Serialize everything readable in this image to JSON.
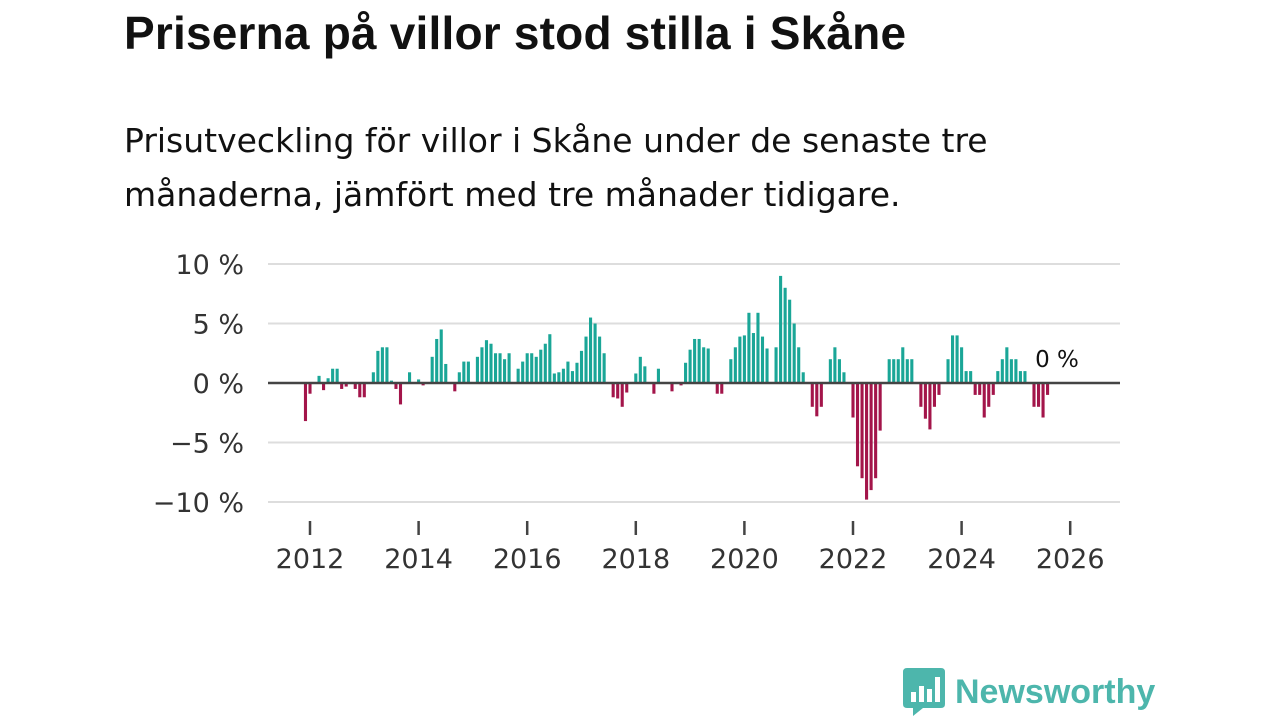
{
  "header": {
    "title": "Priserna på villor stod stilla i Skåne",
    "subtitle": "Prisutveckling för villor i Skåne under de senaste tre månaderna, jämfört med tre månader tidigare."
  },
  "brand": {
    "name": "Newsworthy",
    "logo_icon": "bar-chart-speech-icon",
    "color": "#4db6ac"
  },
  "colors": {
    "positive": "#1aa697",
    "negative": "#a3154a",
    "grid": "#dddddd",
    "zero_line": "#444444",
    "axis_text": "#333333"
  },
  "chart_data": {
    "type": "bar",
    "title": "Priserna på villor stod stilla i Skåne",
    "subtitle": "Prisutveckling för villor i Skåne under de senaste tre månaderna, jämfört med tre månader tidigare.",
    "xlabel": "",
    "ylabel": "",
    "x_unit": "month",
    "start": "2011-12",
    "end": "2025-12",
    "x_range": [
      2011.0,
      2027.0
    ],
    "ylim": [
      -11,
      11
    ],
    "y_ticks": [
      10,
      5,
      0,
      -5,
      -10
    ],
    "y_tick_labels": [
      "10 %",
      "5 %",
      "0 %",
      "−5 %",
      "−10 %"
    ],
    "x_ticks": [
      2012,
      2014,
      2016,
      2018,
      2020,
      2022,
      2024,
      2026
    ],
    "x_tick_labels": [
      "2012",
      "2014",
      "2016",
      "2018",
      "2020",
      "2022",
      "2024",
      "2026"
    ],
    "grid": true,
    "annotation": {
      "label": "0 %",
      "value": 0
    },
    "values": [
      -3.2,
      -0.9,
      0.0,
      0.6,
      -0.6,
      0.4,
      1.2,
      1.2,
      -0.5,
      -0.3,
      0.0,
      -0.5,
      -1.2,
      -1.2,
      0.0,
      0.9,
      2.7,
      3.0,
      3.0,
      0.2,
      -0.5,
      -1.8,
      0.0,
      0.9,
      0.0,
      0.3,
      -0.2,
      0.0,
      2.2,
      3.7,
      4.5,
      1.6,
      0.0,
      -0.7,
      0.9,
      1.8,
      1.8,
      0.0,
      2.2,
      3.0,
      3.6,
      3.3,
      2.5,
      2.5,
      2.0,
      2.5,
      0.0,
      1.2,
      1.8,
      2.5,
      2.5,
      2.2,
      2.8,
      3.3,
      4.1,
      0.8,
      0.9,
      1.2,
      1.8,
      1.0,
      1.7,
      2.7,
      3.9,
      5.5,
      5.0,
      3.9,
      2.5,
      0.0,
      -1.2,
      -1.3,
      -2.0,
      -0.8,
      0.0,
      0.8,
      2.2,
      1.4,
      0.0,
      -0.9,
      1.2,
      0.0,
      0.0,
      -0.7,
      0.0,
      -0.2,
      1.7,
      2.8,
      3.7,
      3.7,
      3.0,
      2.9,
      0.0,
      -0.9,
      -0.9,
      0.0,
      2.0,
      3.0,
      3.9,
      4.0,
      5.9,
      4.2,
      5.9,
      3.9,
      2.9,
      0.0,
      3.0,
      9.0,
      8.0,
      7.0,
      5.0,
      3.0,
      0.9,
      0.0,
      -2.0,
      -2.8,
      -2.0,
      0.0,
      2.0,
      3.0,
      2.0,
      0.9,
      0.0,
      -2.9,
      -7.0,
      -8.0,
      -9.8,
      -9.0,
      -8.0,
      -4.0,
      0.0,
      2.0,
      2.0,
      2.0,
      3.0,
      2.0,
      2.0,
      0.0,
      -2.0,
      -3.0,
      -3.9,
      -2.0,
      -1.0,
      0.0,
      2.0,
      4.0,
      4.0,
      3.0,
      1.0,
      1.0,
      -1.0,
      -1.0,
      -2.9,
      -2.0,
      -1.0,
      1.0,
      2.0,
      3.0,
      2.0,
      2.0,
      1.0,
      1.0,
      0.0,
      -2.0,
      -2.0,
      -2.9,
      -1.0,
      0.0
    ]
  }
}
